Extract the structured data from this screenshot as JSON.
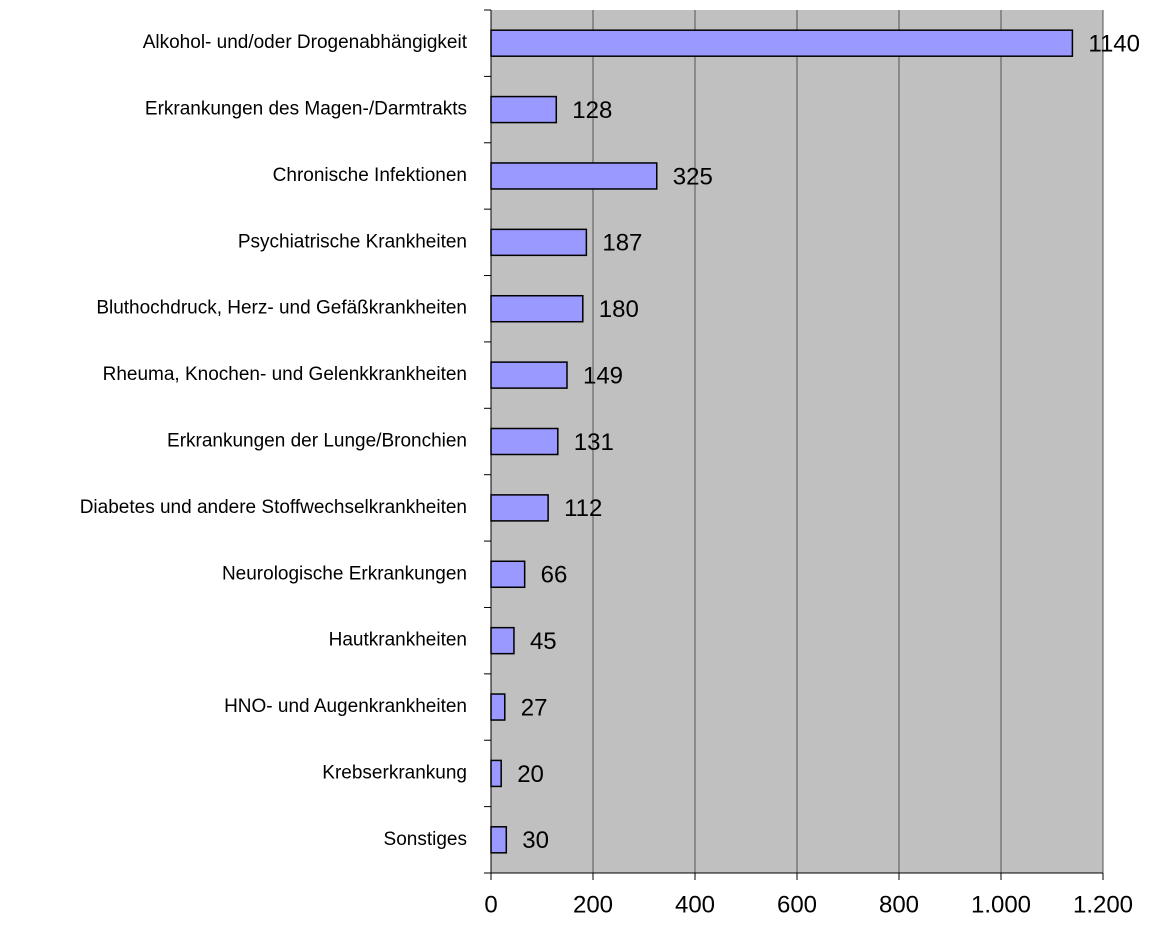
{
  "chart_data": {
    "type": "bar",
    "orientation": "horizontal",
    "categories": [
      "Alkohol- und/oder Drogenabhängigkeit",
      "Erkrankungen des Magen-/Darmtrakts",
      "Chronische Infektionen",
      "Psychiatrische Krankheiten",
      "Bluthochdruck, Herz- und Gefäßkrankheiten",
      "Rheuma, Knochen- und Gelenkkrankheiten",
      "Erkrankungen der Lunge/Bronchien",
      "Diabetes und andere Stoffwechselkrankheiten",
      "Neurologische Erkrankungen",
      "Hautkrankheiten",
      "HNO- und Augenkrankheiten",
      "Krebserkrankung",
      "Sonstiges"
    ],
    "values": [
      1140,
      128,
      325,
      187,
      180,
      149,
      131,
      112,
      66,
      45,
      27,
      20,
      30
    ],
    "color": "#9999ff",
    "xlim": [
      0,
      1200
    ],
    "xticks": [
      0,
      200,
      400,
      600,
      800,
      {
        "value": 1000,
        "label": "1.000"
      },
      {
        "value": 1200,
        "label": "1.200"
      }
    ],
    "grid": true
  }
}
